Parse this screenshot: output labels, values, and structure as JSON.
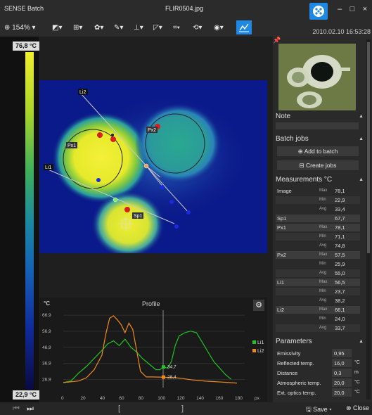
{
  "app": {
    "title": "SENSE Batch",
    "file": "FLIR0504.jpg",
    "datetime": "2010.02.10 16:53:28"
  },
  "window_controls": {
    "minimize": "–",
    "maximize": "□",
    "close": "×"
  },
  "toolbar": {
    "zoom": "154%"
  },
  "scale": {
    "max": "76,8 °C",
    "min": "22,9 °C"
  },
  "overlay_labels": {
    "li1": "Li1",
    "li2": "Li2",
    "px1": "Px1",
    "px2": "Px2",
    "sp1": "Sp1"
  },
  "profile": {
    "title": "Profile",
    "unit": "°C",
    "y_ticks": [
      "66,9",
      "56,9",
      "46,9",
      "36,9",
      "26,9"
    ],
    "x_ticks": [
      "0",
      "20",
      "40",
      "60",
      "80",
      "100",
      "120",
      "140",
      "160",
      "180"
    ],
    "x_unit": "px",
    "marker_values": {
      "li1": "34,7",
      "li2": "28,4"
    },
    "colors": {
      "li1": "#22c322",
      "li2": "#f08a1c"
    }
  },
  "chart_data": {
    "type": "line",
    "ylabel": "°C",
    "xlabel": "px",
    "ylim": [
      21.9,
      70
    ],
    "xlim": [
      0,
      188
    ],
    "legend": "right",
    "series": [
      {
        "name": "Li1",
        "x": [
          0,
          8,
          16,
          24,
          32,
          40,
          46,
          52,
          58,
          64,
          70,
          76,
          82,
          88,
          96,
          100,
          104,
          108,
          112,
          116,
          120,
          126,
          132,
          138,
          144,
          150,
          156,
          162,
          168,
          174
        ],
        "y": [
          25,
          26,
          31,
          35,
          40,
          45,
          49,
          51,
          48,
          52,
          47,
          44,
          40,
          37,
          33,
          33,
          34.7,
          34,
          38,
          48,
          54,
          56,
          57,
          56,
          50,
          44,
          38,
          34,
          30,
          27
        ]
      },
      {
        "name": "Li2",
        "x": [
          0,
          8,
          16,
          24,
          32,
          40,
          44,
          48,
          52,
          56,
          60,
          64,
          68,
          72,
          76,
          80,
          86,
          92,
          100,
          108,
          116,
          124,
          132,
          140,
          148,
          156,
          164,
          172,
          180
        ],
        "y": [
          25,
          25.5,
          26,
          28,
          33,
          42,
          55,
          65,
          66.5,
          64,
          61,
          56,
          62,
          58,
          45,
          32,
          28.5,
          28.5,
          28.4,
          28.2,
          28,
          27.5,
          26.8,
          26.3,
          25.9,
          25.6,
          25.3,
          25,
          24.7
        ]
      }
    ]
  },
  "right_panel": {
    "note_label": "Note",
    "batch_label": "Batch jobs",
    "add_to_batch": "Add to batch",
    "create_jobs": "Create jobs",
    "measurements_label": "Measurements °C",
    "parameters_label": "Parameters"
  },
  "measurements": [
    {
      "name": "Image",
      "stat": "Max",
      "value": "78,1"
    },
    {
      "name": "",
      "stat": "Min",
      "value": "22,9"
    },
    {
      "name": "",
      "stat": "Avg",
      "value": "33,4"
    },
    {
      "name": "Sp1",
      "stat": "",
      "value": "67,7"
    },
    {
      "name": "Px1",
      "stat": "Max",
      "value": "78,1"
    },
    {
      "name": "",
      "stat": "Min",
      "value": "71,1"
    },
    {
      "name": "",
      "stat": "Avg",
      "value": "74,8"
    },
    {
      "name": "Px2",
      "stat": "Max",
      "value": "57,5"
    },
    {
      "name": "",
      "stat": "Min",
      "value": "25,9"
    },
    {
      "name": "",
      "stat": "Avg",
      "value": "55,0"
    },
    {
      "name": "Li1",
      "stat": "Max",
      "value": "56,5"
    },
    {
      "name": "",
      "stat": "Min",
      "value": "23,7"
    },
    {
      "name": "",
      "stat": "Avg",
      "value": "38,2"
    },
    {
      "name": "Li2",
      "stat": "Max",
      "value": "66,1"
    },
    {
      "name": "",
      "stat": "Min",
      "value": "24,0"
    },
    {
      "name": "",
      "stat": "Avg",
      "value": "33,7"
    }
  ],
  "parameters": [
    {
      "name": "Emissivity",
      "value": "0,95",
      "unit": ""
    },
    {
      "name": "Reflected temp.",
      "value": "16,0",
      "unit": "°C"
    },
    {
      "name": "Distance",
      "value": "0,3",
      "unit": "m"
    },
    {
      "name": "Atmospheric temp.",
      "value": "20,0",
      "unit": "°C"
    },
    {
      "name": "Ext. optics temp.",
      "value": "20,0",
      "unit": "°C"
    }
  ],
  "bottom": {
    "save": "Save",
    "close": "Close"
  }
}
